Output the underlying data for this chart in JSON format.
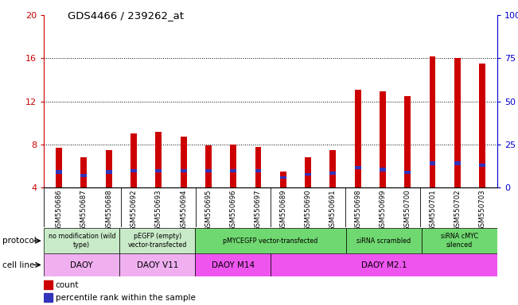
{
  "title": "GDS4466 / 239262_at",
  "samples": [
    "GSM550686",
    "GSM550687",
    "GSM550688",
    "GSM550692",
    "GSM550693",
    "GSM550694",
    "GSM550695",
    "GSM550696",
    "GSM550697",
    "GSM550689",
    "GSM550690",
    "GSM550691",
    "GSM550698",
    "GSM550699",
    "GSM550700",
    "GSM550701",
    "GSM550702",
    "GSM550703"
  ],
  "count_values": [
    7.7,
    6.8,
    7.5,
    9.0,
    9.2,
    8.7,
    7.9,
    8.0,
    7.8,
    5.5,
    6.8,
    7.5,
    13.1,
    12.9,
    12.5,
    16.2,
    16.0,
    15.5
  ],
  "blue_bottom": [
    5.3,
    5.0,
    5.3,
    5.4,
    5.4,
    5.4,
    5.4,
    5.4,
    5.4,
    4.85,
    5.1,
    5.2,
    5.7,
    5.5,
    5.3,
    6.1,
    6.1,
    5.9
  ],
  "blue_height": [
    0.32,
    0.25,
    0.3,
    0.28,
    0.28,
    0.28,
    0.28,
    0.28,
    0.28,
    0.22,
    0.22,
    0.25,
    0.32,
    0.32,
    0.28,
    0.36,
    0.36,
    0.32
  ],
  "ylim_left": [
    4,
    20
  ],
  "ylim_right": [
    0,
    100
  ],
  "yticks_left": [
    4,
    8,
    12,
    16,
    20
  ],
  "yticks_right": [
    0,
    25,
    50,
    75,
    100
  ],
  "ytick_labels_right": [
    "0",
    "25",
    "50",
    "75",
    "100%"
  ],
  "gridlines": [
    8,
    12,
    16
  ],
  "bar_color": "#cc0000",
  "blue_color": "#3333bb",
  "axis_color_left": "#cc0000",
  "axis_color_right": "#0000cc",
  "tick_area_color": "#d8d8d8",
  "protocol_groups": [
    {
      "label": "no modification (wild\ntype)",
      "start": 0,
      "end": 3,
      "color": "#c8eac8"
    },
    {
      "label": "pEGFP (empty)\nvector-transfected",
      "start": 3,
      "end": 6,
      "color": "#c8eac8"
    },
    {
      "label": "pMYCEGFP vector-transfected",
      "start": 6,
      "end": 12,
      "color": "#70d870"
    },
    {
      "label": "siRNA scrambled",
      "start": 12,
      "end": 15,
      "color": "#70d870"
    },
    {
      "label": "siRNA cMYC\nsilenced",
      "start": 15,
      "end": 18,
      "color": "#70d870"
    }
  ],
  "cell_line_groups": [
    {
      "label": "DAOY",
      "start": 0,
      "end": 3,
      "color": "#f0b0f0"
    },
    {
      "label": "DAOY V11",
      "start": 3,
      "end": 6,
      "color": "#f0b0f0"
    },
    {
      "label": "DAOY M14",
      "start": 6,
      "end": 9,
      "color": "#ee55ee"
    },
    {
      "label": "DAOY M2.1",
      "start": 9,
      "end": 18,
      "color": "#ee55ee"
    }
  ],
  "group_boundaries": [
    3,
    6,
    9,
    12,
    15
  ],
  "bar_width": 0.25
}
